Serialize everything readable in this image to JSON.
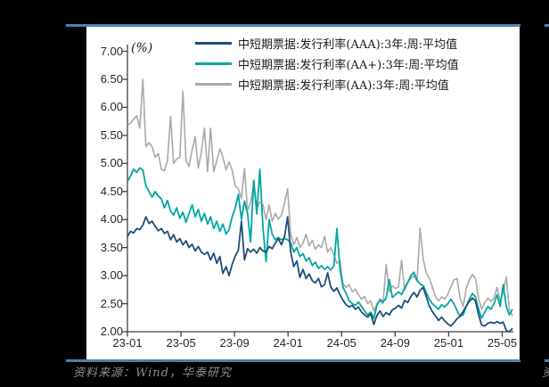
{
  "page": {
    "background": "#000000",
    "panel_background": "#ffffff"
  },
  "rules": {
    "color": "#4e7fb5"
  },
  "unit_label": "(%)",
  "source_note": "资料来源：Wind，华泰研究",
  "right_edge_fragment": "资",
  "chart_data": {
    "type": "line",
    "title": "",
    "ylabel": "(%)",
    "xlabel": "",
    "ylim": [
      2.0,
      7.0
    ],
    "ytick_step": 0.5,
    "ytick_labels": [
      "7.00",
      "6.50",
      "6.00",
      "5.50",
      "5.00",
      "4.50",
      "4.00",
      "3.50",
      "3.00",
      "2.50",
      "2.00"
    ],
    "xtick_labels": [
      "23-01",
      "23-05",
      "23-09",
      "24-01",
      "24-05",
      "24-09",
      "25-01",
      "25-05"
    ],
    "xtick_week_positions": [
      0,
      17.38,
      34.76,
      52.14,
      69.52,
      86.9,
      104.29,
      121.67
    ],
    "total_weeks": 125,
    "grid": false,
    "legend_position": "top-center",
    "axis_color": "#3f3f3f",
    "frequency": "weekly",
    "series": [
      {
        "name": "中短期票据:发行利率(AAA):3年:周:平均值",
        "color": "#1f4e79",
        "values": [
          3.7,
          3.79,
          3.76,
          3.84,
          3.82,
          3.9,
          4.05,
          3.93,
          3.97,
          3.88,
          3.8,
          3.84,
          3.75,
          3.79,
          3.64,
          3.73,
          3.6,
          3.66,
          3.55,
          3.62,
          3.5,
          3.56,
          3.44,
          3.52,
          3.42,
          3.38,
          3.42,
          3.28,
          3.4,
          3.22,
          3.34,
          3.04,
          3.16,
          3.0,
          3.2,
          3.35,
          3.45,
          3.97,
          3.28,
          3.48,
          3.42,
          3.47,
          3.4,
          3.5,
          3.44,
          3.42,
          3.52,
          3.48,
          3.58,
          3.66,
          3.55,
          3.7,
          4.05,
          3.42,
          3.16,
          3.26,
          2.97,
          3.11,
          2.95,
          3.03,
          2.91,
          2.87,
          2.95,
          2.8,
          2.84,
          3.05,
          2.8,
          2.72,
          2.78,
          2.66,
          2.56,
          2.48,
          2.44,
          2.47,
          2.4,
          2.44,
          2.35,
          2.3,
          2.26,
          2.32,
          2.13,
          2.29,
          2.37,
          2.27,
          2.34,
          2.3,
          2.39,
          2.42,
          2.47,
          2.42,
          2.56,
          2.52,
          2.63,
          2.7,
          2.62,
          2.74,
          2.79,
          2.63,
          2.46,
          2.36,
          2.28,
          2.2,
          2.26,
          2.19,
          2.14,
          2.1,
          2.16,
          2.23,
          2.28,
          2.36,
          2.46,
          2.54,
          2.6,
          2.55,
          2.3,
          2.12,
          2.1,
          2.15,
          2.17,
          2.15,
          2.18,
          2.15,
          2.17,
          2.02,
          2.0,
          2.06
        ]
      },
      {
        "name": "中短期票据:发行利率(AA+):3年:周:平均值",
        "color": "#00a7a0",
        "values": [
          4.68,
          4.78,
          4.9,
          4.84,
          4.92,
          4.88,
          4.6,
          4.5,
          4.4,
          4.5,
          4.42,
          4.37,
          4.21,
          4.34,
          4.15,
          4.08,
          4.21,
          4.02,
          4.13,
          3.95,
          4.11,
          4.26,
          4.05,
          4.18,
          3.97,
          4.11,
          3.92,
          4.05,
          3.84,
          3.97,
          3.79,
          3.92,
          3.74,
          3.82,
          4.05,
          4.21,
          4.45,
          4.0,
          4.33,
          4.1,
          3.6,
          4.7,
          4.1,
          4.9,
          3.85,
          3.25,
          4.0,
          3.74,
          3.64,
          3.68,
          3.64,
          3.66,
          3.64,
          3.58,
          3.42,
          3.5,
          3.34,
          3.39,
          3.26,
          3.32,
          3.18,
          3.24,
          3.13,
          3.18,
          3.11,
          3.16,
          3.1,
          3.17,
          3.84,
          3.11,
          2.79,
          2.68,
          2.55,
          2.5,
          2.47,
          2.53,
          2.45,
          2.37,
          2.3,
          2.35,
          2.24,
          2.47,
          2.58,
          2.53,
          2.6,
          2.93,
          2.61,
          2.66,
          2.71,
          2.66,
          2.78,
          2.88,
          3.0,
          3.06,
          2.92,
          2.85,
          2.82,
          2.7,
          2.58,
          2.5,
          2.45,
          2.4,
          2.48,
          2.44,
          2.5,
          2.58,
          2.5,
          2.38,
          2.27,
          2.3,
          2.45,
          2.58,
          2.68,
          2.62,
          2.4,
          2.24,
          2.35,
          2.45,
          2.4,
          2.5,
          2.66,
          2.45,
          2.84,
          2.45,
          2.3,
          2.4
        ]
      },
      {
        "name": "中短期票据:发行利率(AA):3年:周:平均值",
        "color": "#a9a9a9",
        "values": [
          5.68,
          5.72,
          5.79,
          5.85,
          5.63,
          6.5,
          5.3,
          5.37,
          5.3,
          5.11,
          5.18,
          4.9,
          4.87,
          5.05,
          5.84,
          5.0,
          5.08,
          5.11,
          6.29,
          5.05,
          4.95,
          5.24,
          5.47,
          4.92,
          5.2,
          5.63,
          4.85,
          5.63,
          4.85,
          5.05,
          5.26,
          5.11,
          4.89,
          5.03,
          4.88,
          4.6,
          4.55,
          4.37,
          4.91,
          4.16,
          4.3,
          4.64,
          4.2,
          4.32,
          4.26,
          4.0,
          4.26,
          3.97,
          4.11,
          4.01,
          4.08,
          4.3,
          4.55,
          3.74,
          3.55,
          3.68,
          3.5,
          3.58,
          3.74,
          3.53,
          3.63,
          3.47,
          3.55,
          3.5,
          3.7,
          3.42,
          3.5,
          3.37,
          3.22,
          3.26,
          2.85,
          2.79,
          2.84,
          2.71,
          2.76,
          2.66,
          2.58,
          2.63,
          2.5,
          2.55,
          2.37,
          2.5,
          2.55,
          2.5,
          3.2,
          2.71,
          2.82,
          2.77,
          2.8,
          3.27,
          2.74,
          2.87,
          2.95,
          3.0,
          2.9,
          3.85,
          3.3,
          3.05,
          2.95,
          2.8,
          2.62,
          2.55,
          2.62,
          2.58,
          2.66,
          2.8,
          2.92,
          2.95,
          2.6,
          2.45,
          2.78,
          2.92,
          3.02,
          2.95,
          2.6,
          2.4,
          2.52,
          2.6,
          2.54,
          2.6,
          2.79,
          2.55,
          2.7,
          2.98,
          2.4,
          2.28
        ]
      }
    ]
  }
}
